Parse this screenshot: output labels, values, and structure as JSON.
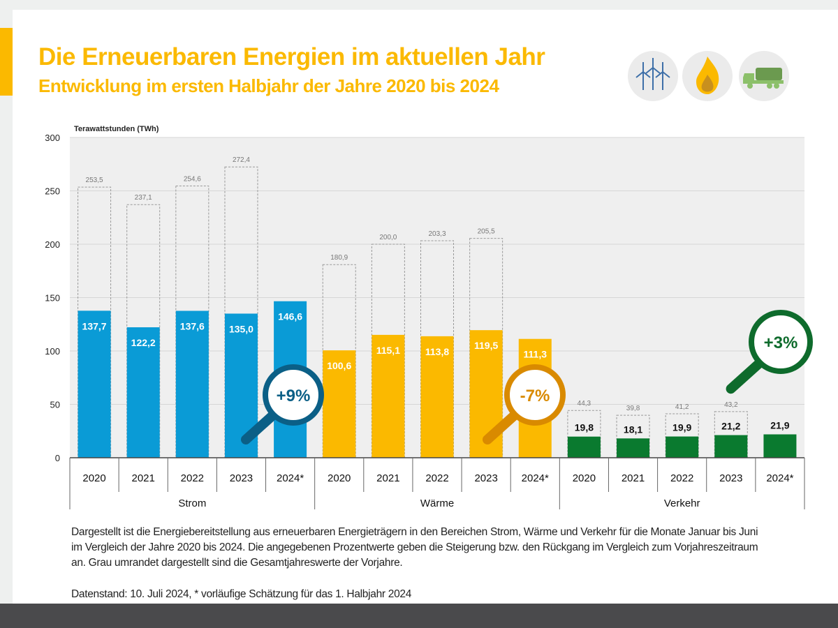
{
  "header": {
    "title": "Die Erneuerbaren Energien im aktuellen Jahr",
    "subtitle": "Entwicklung im ersten Halbjahr der Jahre 2020 bis 2024"
  },
  "icons": [
    "wind-turbine-icon",
    "flame-icon",
    "tanker-truck-icon"
  ],
  "chart_data": {
    "type": "bar",
    "ylabel": "Terawattstunden (TWh)",
    "ylim": [
      0,
      300
    ],
    "yticks": [
      0,
      50,
      100,
      150,
      200,
      250,
      300
    ],
    "grid": true,
    "groups": [
      {
        "name": "Strom",
        "color": "#0a9bd6",
        "years": [
          "2020",
          "2021",
          "2022",
          "2023",
          "2024*"
        ],
        "values": [
          137.7,
          122.2,
          137.6,
          135.0,
          146.6
        ],
        "value_labels": [
          "137,7",
          "122,2",
          "137,6",
          "135,0",
          "146,6"
        ],
        "annual_totals": [
          253.5,
          237.1,
          254.6,
          272.4,
          null
        ],
        "annual_labels": [
          "253,5",
          "237,1",
          "254,6",
          "272,4",
          ""
        ],
        "change": "+9%",
        "change_color": "#0b5f86"
      },
      {
        "name": "Wärme",
        "color": "#fbb900",
        "years": [
          "2020",
          "2021",
          "2022",
          "2023",
          "2024*"
        ],
        "values": [
          100.6,
          115.1,
          113.8,
          119.5,
          111.3
        ],
        "value_labels": [
          "100,6",
          "115,1",
          "113,8",
          "119,5",
          "111,3"
        ],
        "annual_totals": [
          180.9,
          200.0,
          203.3,
          205.5,
          null
        ],
        "annual_labels": [
          "180,9",
          "200,0",
          "203,3",
          "205,5",
          ""
        ],
        "change": "-7%",
        "change_color": "#d98a00"
      },
      {
        "name": "Verkehr",
        "color": "#0a7a2f",
        "years": [
          "2020",
          "2021",
          "2022",
          "2023",
          "2024*"
        ],
        "values": [
          19.8,
          18.1,
          19.9,
          21.2,
          21.9
        ],
        "value_labels": [
          "19,8",
          "18,1",
          "19,9",
          "21,2",
          "21,9"
        ],
        "annual_totals": [
          44.3,
          39.8,
          41.2,
          43.2,
          null
        ],
        "annual_labels": [
          "44,3",
          "39,8",
          "41,2",
          "43,2",
          ""
        ],
        "change": "+3%",
        "change_color": "#0e6b2c"
      }
    ]
  },
  "description": "Dargestellt ist die Energiebereitstellung aus erneuerbaren Energieträgern in den Bereichen Strom, Wärme und Verkehr für die Monate Januar bis Juni im Vergleich der Jahre 2020 bis 2024. Die angegebenen Prozentwerte geben die Steigerung bzw. den Rückgang im Vergleich zum Vorjahreszeitraum an. Grau umrandet dargestellt sind die Gesamtjahreswerte der Vorjahre.",
  "footnote": "Datenstand: 10. Juli 2024, * vorläufige Schätzung für das 1. Halbjahr 2024"
}
